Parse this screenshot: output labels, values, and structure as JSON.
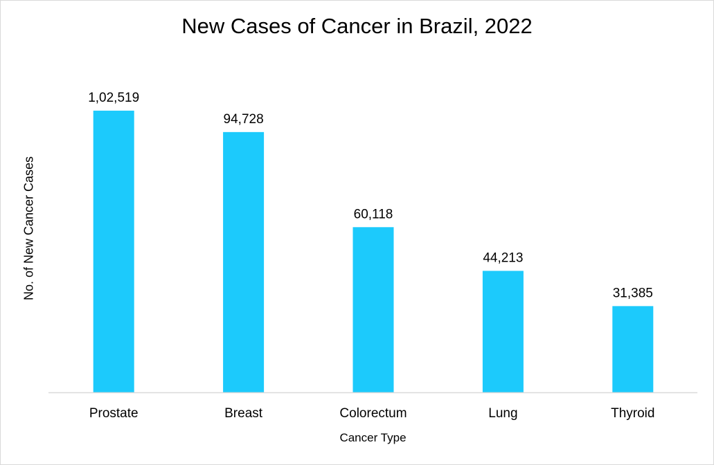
{
  "chart_data": {
    "type": "bar",
    "title": "New Cases of Cancer in Brazil, 2022",
    "xlabel": "Cancer Type",
    "ylabel": "No. of New Cancer Cases",
    "categories": [
      "Prostate",
      "Breast",
      "Colorectum",
      "Lung",
      "Thyroid"
    ],
    "values": [
      102519,
      94728,
      60118,
      44213,
      31385
    ],
    "data_labels": [
      "1,02,519",
      "94,728",
      "60,118",
      "44,213",
      "31,385"
    ],
    "ylim": [
      0,
      120000
    ],
    "grid": false,
    "legend": "none",
    "bar_color": "#1CCAFC"
  }
}
